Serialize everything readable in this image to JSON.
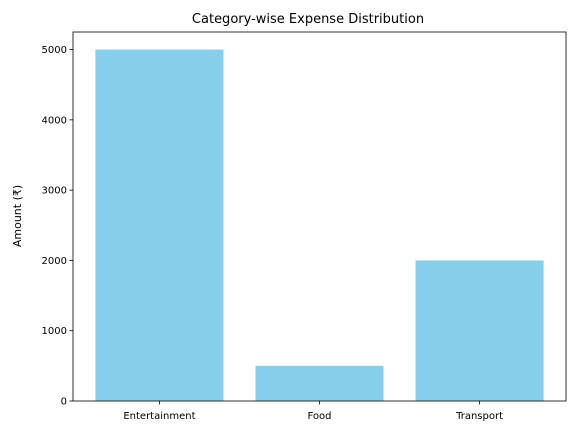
{
  "chart_data": {
    "type": "bar",
    "title": "Category-wise Expense Distribution",
    "xlabel": "",
    "ylabel": "Amount (₹)",
    "categories": [
      "Entertainment",
      "Food",
      "Transport"
    ],
    "values": [
      5000,
      500,
      2000
    ],
    "ylim": [
      0,
      5250
    ],
    "yticks": [
      0,
      1000,
      2000,
      3000,
      4000,
      5000
    ],
    "bar_color": "#87CEEB",
    "grid": false,
    "legend": "none"
  }
}
